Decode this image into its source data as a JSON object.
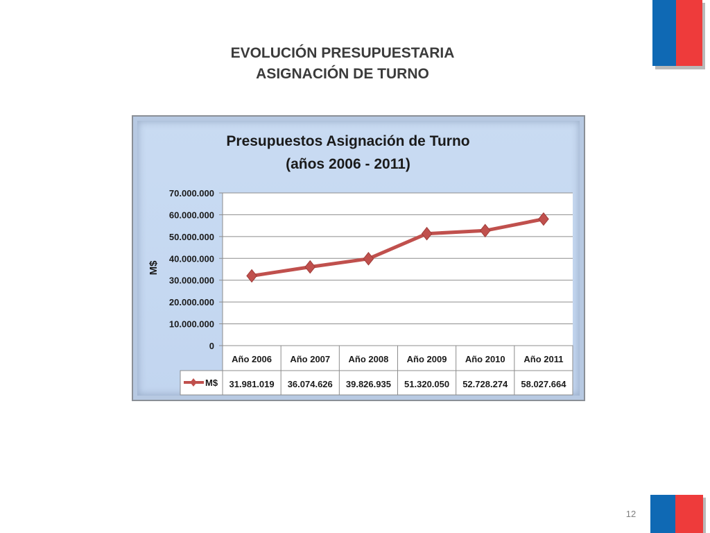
{
  "slide": {
    "title_line1": "EVOLUCIÓN PRESUPUESTARIA",
    "title_line2": "ASIGNACIÓN DE TURNO",
    "page_number": "12"
  },
  "colors": {
    "flag_blue": "#0f69b4",
    "flag_red": "#ee3b3b",
    "series_line": "#c0504d",
    "plot_background": "#ffffff",
    "chart_background": "#c6d9f1"
  },
  "chart_data": {
    "type": "line",
    "title": "Presupuestos Asignación de Turno",
    "subtitle": "(años 2006 - 2011)",
    "xlabel": "",
    "ylabel": "M$",
    "categories": [
      "Año 2006",
      "Año  2007",
      "Año  2008",
      "Año  2009",
      "Año  2010",
      "Año  2011"
    ],
    "series": [
      {
        "name": "M$",
        "values": [
          31981019,
          36074626,
          39826935,
          51320050,
          52728274,
          58027664
        ],
        "value_labels": [
          "31.981.019",
          "36.074.626",
          "39.826.935",
          "51.320.050",
          "52.728.274",
          "58.027.664"
        ],
        "marker": "diamond"
      }
    ],
    "ylim": [
      0,
      70000000
    ],
    "yticks": [
      0,
      10000000,
      20000000,
      30000000,
      40000000,
      50000000,
      60000000,
      70000000
    ],
    "ytick_labels": [
      "0",
      "10.000.000",
      "20.000.000",
      "30.000.000",
      "40.000.000",
      "50.000.000",
      "60.000.000",
      "70.000.000"
    ],
    "grid": true,
    "data_table": true,
    "legend": "data-table"
  }
}
